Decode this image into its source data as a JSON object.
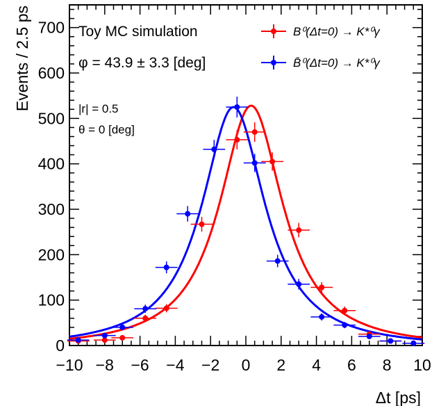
{
  "chart_data": {
    "type": "scatter",
    "xlabel": "Δt [ps]",
    "ylabel": "Events / 2.5 ps",
    "xlim": [
      -10,
      10
    ],
    "ylim": [
      0,
      750
    ],
    "xticks": [
      "−10",
      "−8",
      "−6",
      "−4",
      "−2",
      "0",
      "2",
      "4",
      "6",
      "8",
      "10"
    ],
    "yticks": [
      "0",
      "100",
      "200",
      "300",
      "400",
      "500",
      "600",
      "700"
    ],
    "grid": false,
    "legend_position": "top-right",
    "annotations": {
      "line1": "Toy MC simulation",
      "line2": "φ = 43.9 ± 3.3 [deg]",
      "line3": "|r| = 0.5",
      "line4": "θ = 0 [deg]"
    },
    "series": [
      {
        "name": "B⁰(Δt=0) → K*⁰γ",
        "color": "#ff0000",
        "x": [
          -9.5,
          -8.0,
          -7.0,
          -5.7,
          -4.5,
          -2.5,
          -0.5,
          0.5,
          1.5,
          3.0,
          4.3,
          5.6,
          7.0,
          8.2,
          9.5
        ],
        "y": [
          10,
          12,
          17,
          60,
          82,
          267,
          453,
          470,
          405,
          254,
          128,
          77,
          25,
          10,
          5
        ],
        "fit": {
          "mean": 0.3,
          "peak": 528,
          "sigma": 2.2
        }
      },
      {
        "name": "B̄⁰(Δt=0) → K*⁰γ",
        "color": "#0000ff",
        "x": [
          -9.5,
          -8.0,
          -7.0,
          -5.7,
          -4.5,
          -3.3,
          -1.8,
          -0.5,
          0.5,
          1.8,
          3.0,
          4.3,
          5.6,
          7.0,
          8.2,
          9.5
        ],
        "y": [
          12,
          22,
          40,
          81,
          172,
          290,
          432,
          525,
          402,
          186,
          135,
          63,
          45,
          20,
          10,
          5
        ],
        "fit": {
          "mean": -0.7,
          "peak": 525,
          "sigma": 2.2
        }
      }
    ]
  }
}
